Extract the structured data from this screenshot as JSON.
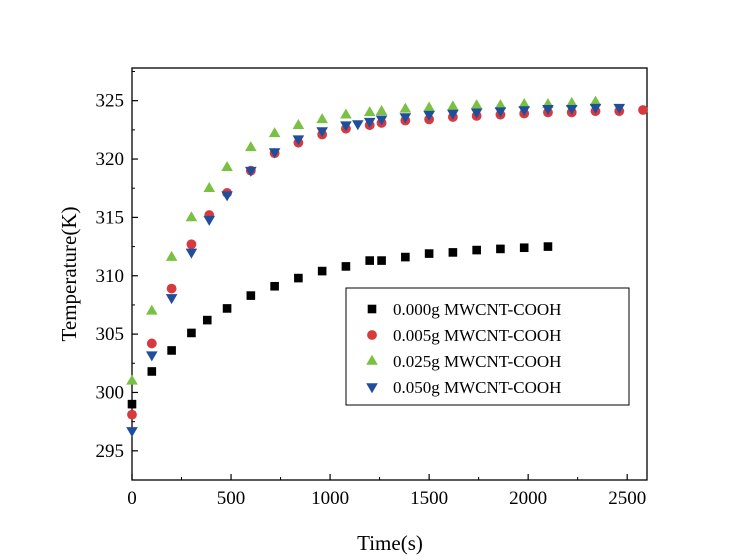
{
  "chart_data": {
    "type": "scatter",
    "title": "",
    "xlabel": "Time(s)",
    "ylabel": "Temperature(K)",
    "xlim": [
      0,
      2600
    ],
    "ylim": [
      292.5,
      327.8
    ],
    "xticks": [
      0,
      500,
      1000,
      1500,
      2000,
      2500
    ],
    "yticks": [
      295,
      300,
      305,
      310,
      315,
      320,
      325
    ],
    "grid": false,
    "legend_position": "center-right",
    "series": [
      {
        "name": "0.000g MWCNT-COOH",
        "marker": "square",
        "color": "#000000",
        "x": [
          0,
          100,
          200,
          300,
          380,
          480,
          600,
          720,
          840,
          960,
          1080,
          1200,
          1260,
          1380,
          1500,
          1620,
          1740,
          1860,
          1980,
          2100
        ],
        "y": [
          299.0,
          301.8,
          303.6,
          305.1,
          306.2,
          307.2,
          308.3,
          309.1,
          309.8,
          310.4,
          310.8,
          311.3,
          311.3,
          311.6,
          311.9,
          312.0,
          312.2,
          312.3,
          312.4,
          312.5
        ]
      },
      {
        "name": "0.005g MWCNT-COOH",
        "marker": "circle",
        "color": "#d63a3f",
        "x": [
          0,
          100,
          200,
          300,
          390,
          480,
          600,
          720,
          840,
          960,
          1080,
          1200,
          1260,
          1380,
          1500,
          1620,
          1740,
          1860,
          1980,
          2100,
          2220,
          2340,
          2460,
          2580
        ],
        "y": [
          298.1,
          304.2,
          308.9,
          312.7,
          315.2,
          317.1,
          319.0,
          320.5,
          321.4,
          322.1,
          322.6,
          322.9,
          323.1,
          323.3,
          323.4,
          323.6,
          323.7,
          323.8,
          323.9,
          324.0,
          324.0,
          324.1,
          324.1,
          324.2
        ]
      },
      {
        "name": "0.025g MWCNT-COOH",
        "marker": "triangle-up",
        "color": "#7ac143",
        "x": [
          0,
          100,
          200,
          300,
          390,
          480,
          600,
          720,
          840,
          960,
          1080,
          1200,
          1260,
          1380,
          1500,
          1620,
          1740,
          1860,
          1980,
          2100,
          2220,
          2340
        ],
        "y": [
          301.0,
          307.0,
          311.6,
          315.0,
          317.5,
          319.3,
          321.0,
          322.2,
          322.9,
          323.4,
          323.8,
          324.0,
          324.1,
          324.3,
          324.4,
          324.5,
          324.6,
          324.6,
          324.7,
          324.7,
          324.8,
          324.9
        ]
      },
      {
        "name": "0.050g MWCNT-COOH",
        "marker": "triangle-down",
        "color": "#1f4e9c",
        "x": [
          0,
          100,
          200,
          300,
          390,
          480,
          600,
          720,
          840,
          960,
          1080,
          1140,
          1200,
          1260,
          1380,
          1500,
          1620,
          1740,
          1860,
          1980,
          2100,
          2220,
          2340,
          2460
        ],
        "y": [
          296.7,
          303.2,
          308.1,
          312.0,
          314.8,
          316.9,
          319.0,
          320.6,
          321.7,
          322.4,
          322.9,
          323.0,
          323.2,
          323.4,
          323.6,
          323.8,
          323.9,
          324.0,
          324.1,
          324.2,
          324.3,
          324.3,
          324.4,
          324.4
        ]
      }
    ]
  }
}
